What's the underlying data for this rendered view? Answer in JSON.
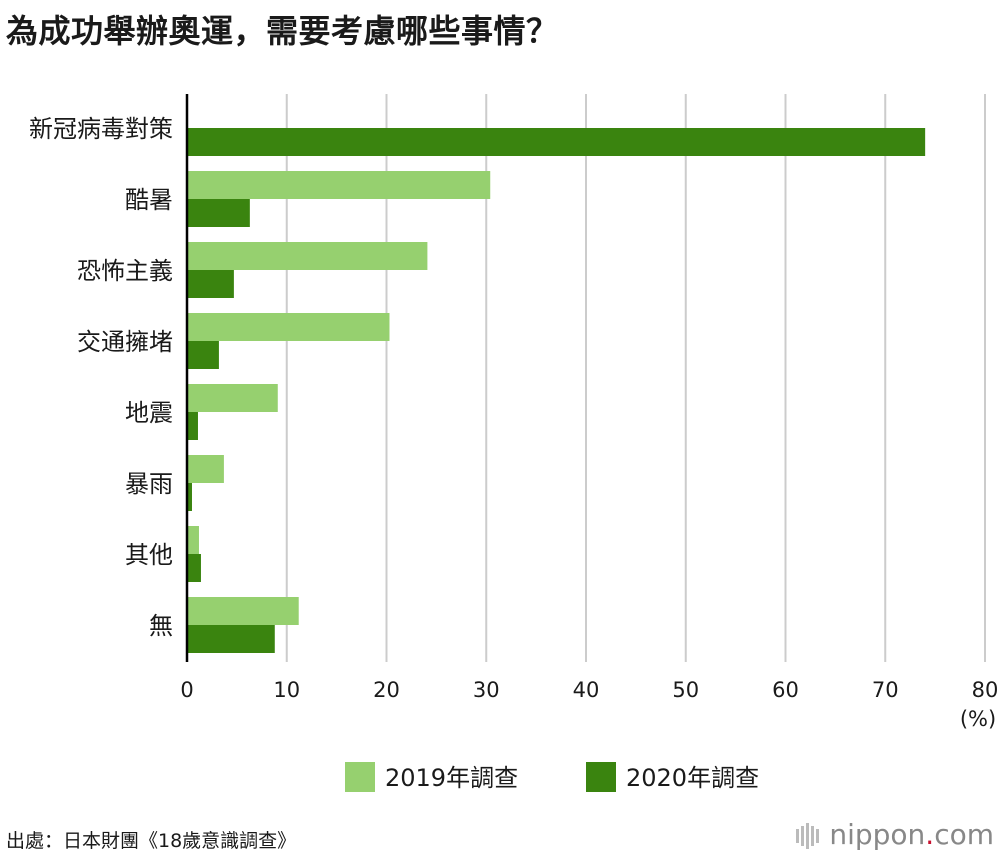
{
  "chart_data": {
    "type": "bar",
    "orientation": "horizontal",
    "title": "為成功舉辦奧運，需要考慮哪些事情？",
    "categories": [
      "新冠病毒對策",
      "酷暑",
      "恐怖主義",
      "交通擁堵",
      "地震",
      "暴雨",
      "其他",
      "無"
    ],
    "series": [
      {
        "name": "2019年調查",
        "color": "#96d06f",
        "values": [
          0,
          30.4,
          24.1,
          20.3,
          9.1,
          3.7,
          1.2,
          11.2
        ]
      },
      {
        "name": "2020年調查",
        "color": "#3a840f",
        "values": [
          74.0,
          6.3,
          4.7,
          3.2,
          1.1,
          0.5,
          1.4,
          8.8
        ]
      }
    ],
    "xlim": [
      0,
      80
    ],
    "xticks": [
      0,
      10,
      20,
      30,
      40,
      50,
      60,
      70,
      80
    ],
    "unit_label": "(%)",
    "grid": true,
    "legend_position": "bottom-center"
  },
  "source": "出處：日本財團《18歲意識調查》",
  "brand": {
    "name": "nippon",
    "dot": ".",
    "suffix": "com"
  }
}
